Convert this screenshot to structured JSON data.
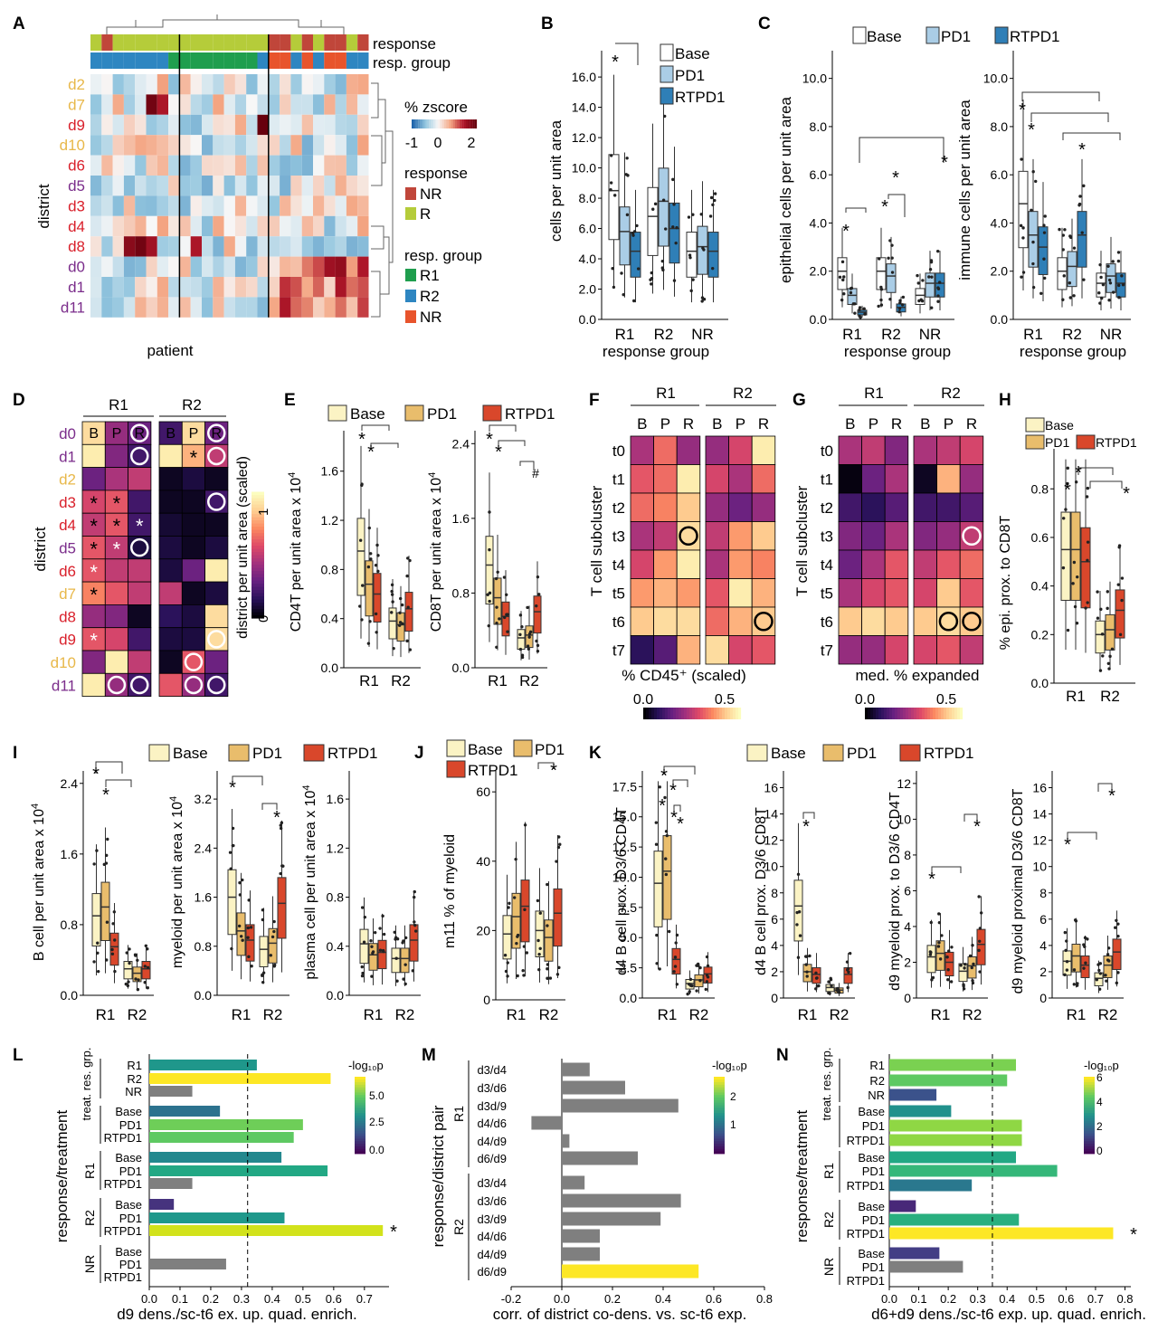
{
  "panel_letters": {
    "A": "A",
    "B": "B",
    "C": "C",
    "D": "D",
    "E": "E",
    "F": "F",
    "G": "G",
    "H": "H",
    "I": "I",
    "J": "J",
    "K": "K",
    "L": "L",
    "M": "M",
    "N": "N"
  },
  "colors": {
    "base": "#fbf3c4",
    "pd1": "#e9bd6c",
    "rtpd1": "#d9472b",
    "b_base": "#ffffff",
    "b_pd1": "#aacde6",
    "b_rtpd1": "#2f7fb7",
    "R": "#b5cc3a",
    "NR": "#c0463a",
    "R1": "#1f9e4e",
    "R2": "#2e86c1",
    "NRg": "#e8542c",
    "grey": "#7f7f7f",
    "R1_text": "#d9202b",
    "R2_text": "#7b2d8b",
    "NR_text": "#e8b84a"
  },
  "legend": {
    "base": "Base",
    "pd1": "PD1",
    "rtpd1": "RTPD1"
  },
  "stars": {
    "s": "*",
    "hash": "#"
  },
  "A": {
    "rows": [
      "d2",
      "d7",
      "d9",
      "d10",
      "d6",
      "d5",
      "d3",
      "d4",
      "d8",
      "d0",
      "d1",
      "d11"
    ],
    "row_colors": [
      "#e8b84a",
      "#e8b84a",
      "#d9202b",
      "#e8b84a",
      "#d9202b",
      "#7b2d8b",
      "#d9202b",
      "#d9202b",
      "#d9202b",
      "#7b2d8b",
      "#7b2d8b",
      "#7b2d8b"
    ],
    "response_label": "response",
    "group_label": "resp. group",
    "ylabel": "district",
    "xlabel": "patient",
    "zscore_label": "% zscore",
    "zticks": [
      "-1",
      "0",
      "2"
    ],
    "legend_response_title": "response",
    "legend_response": [
      "NR",
      "R"
    ],
    "legend_group_title": "resp. group",
    "legend_group": [
      "R1",
      "R2",
      "NR"
    ]
  },
  "B": {
    "ylabel": "cells per unit area",
    "xlabel": "response group",
    "yticks": [
      "0.0",
      "2.0",
      "4.0",
      "6.0",
      "8.0",
      "10.0",
      "12.0",
      "14.0",
      "16.0"
    ],
    "groups": [
      "R1",
      "R2",
      "NR"
    ],
    "chart_data": {
      "type": "box",
      "title": "",
      "ylim": [
        0,
        17.5
      ],
      "series": [
        {
          "name": "Base",
          "values": [
            8.5,
            6.8,
            4.5
          ]
        },
        {
          "name": "PD1",
          "values": [
            5.8,
            7.8,
            4.8
          ]
        },
        {
          "name": "RTPD1",
          "values": [
            4.5,
            6.0,
            4.5
          ]
        }
      ]
    }
  },
  "C1": {
    "ylabel": "epithelial cells per unit area",
    "xlabel": "response group",
    "yticks": [
      "0.0",
      "2.0",
      "4.0",
      "6.0",
      "8.0",
      "10.0"
    ],
    "groups": [
      "R1",
      "R2",
      "NR"
    ],
    "chart_data": {
      "type": "box",
      "title": "",
      "ylim": [
        0,
        11
      ],
      "series": [
        {
          "name": "Base",
          "values": [
            2.0,
            2.0,
            1.0
          ]
        },
        {
          "name": "PD1",
          "values": [
            1.0,
            1.8,
            1.5
          ]
        },
        {
          "name": "RTPD1",
          "values": [
            0.3,
            0.5,
            1.5
          ]
        }
      ]
    }
  },
  "C2": {
    "ylabel": "immune cells per unit area",
    "xlabel": "response group",
    "yticks": [
      "0.0",
      "2.0",
      "4.0",
      "6.0",
      "8.0",
      "10.0"
    ],
    "groups": [
      "R1",
      "R2",
      "NR"
    ],
    "chart_data": {
      "type": "box",
      "title": "",
      "ylim": [
        0,
        11
      ],
      "series": [
        {
          "name": "Base",
          "values": [
            4.8,
            2.0,
            1.5
          ]
        },
        {
          "name": "PD1",
          "values": [
            3.5,
            2.2,
            1.8
          ]
        },
        {
          "name": "RTPD1",
          "values": [
            3.0,
            3.5,
            1.5
          ]
        }
      ]
    }
  },
  "D": {
    "ylabel": "district",
    "g1": "R1",
    "g2": "R2",
    "cols": [
      "B",
      "P",
      "R"
    ],
    "rows": [
      "d0",
      "d1",
      "d2",
      "d3",
      "d4",
      "d5",
      "d6",
      "d7",
      "d8",
      "d9",
      "d10",
      "d11"
    ],
    "cbar_label": "district per unit area (scaled)",
    "cbar_ticks": [
      "0",
      "1"
    ]
  },
  "E": {
    "ylabel1": "CD4T per unit area x 10",
    "ylabel2": "CD8T per unit area x 10",
    "exp": "4",
    "groups": [
      "R1",
      "R2"
    ],
    "yticks1": [
      "0.0",
      "0.4",
      "0.8",
      "1.2",
      "1.6"
    ],
    "yticks2": [
      "0.0",
      "0.8",
      "1.6",
      "2.4"
    ],
    "chart_data": [
      {
        "type": "box",
        "title": "",
        "ylim": [
          0,
          1.9
        ],
        "series": [
          {
            "name": "Base",
            "values": [
              0.95,
              0.38
            ]
          },
          {
            "name": "PD1",
            "values": [
              0.68,
              0.35
            ]
          },
          {
            "name": "RTPD1",
            "values": [
              0.6,
              0.48
            ]
          }
        ]
      },
      {
        "type": "box",
        "title": "",
        "ylim": [
          0,
          2.5
        ],
        "series": [
          {
            "name": "Base",
            "values": [
              1.1,
              0.32
            ]
          },
          {
            "name": "PD1",
            "values": [
              0.75,
              0.35
            ]
          },
          {
            "name": "RTPD1",
            "values": [
              0.55,
              0.6
            ]
          }
        ]
      }
    ]
  },
  "F": {
    "ylabel": "T cell subcluster",
    "g1": "R1",
    "g2": "R2",
    "cols": [
      "B",
      "P",
      "R"
    ],
    "rows": [
      "t0",
      "t1",
      "t2",
      "t3",
      "t4",
      "t5",
      "t6",
      "t7"
    ],
    "xlabel": "% CD45⁺ (scaled)",
    "cbar_ticks": [
      "0.0",
      "0.5"
    ]
  },
  "G": {
    "ylabel": "T cell subcluster",
    "g1": "R1",
    "g2": "R2",
    "cols": [
      "B",
      "P",
      "R"
    ],
    "rows": [
      "t0",
      "t1",
      "t2",
      "t3",
      "t4",
      "t5",
      "t6",
      "t7"
    ],
    "xlabel": "med. % expanded",
    "cbar_ticks": [
      "0.0",
      "0.5"
    ]
  },
  "H": {
    "ylabel": "% epi. prox. to CD8T",
    "yticks": [
      "0.0",
      "0.2",
      "0.4",
      "0.6",
      "0.8"
    ],
    "groups": [
      "R1",
      "R2"
    ],
    "chart_data": {
      "type": "box",
      "title": "",
      "ylim": [
        0,
        0.95
      ],
      "series": [
        {
          "name": "Base",
          "values": [
            0.55,
            0.2
          ]
        },
        {
          "name": "PD1",
          "values": [
            0.55,
            0.22
          ]
        },
        {
          "name": "RTPD1",
          "values": [
            0.5,
            0.3
          ]
        }
      ]
    }
  },
  "I": {
    "ylabel1": "B cell per unit area x 10",
    "ylabel2": "myeloid per unit area x 10",
    "ylabel3": "plasma cell per unit area x 10",
    "exp": "4",
    "groups": [
      "R1",
      "R2"
    ],
    "yticks1": [
      "0.0",
      "0.8",
      "1.6",
      "2.4"
    ],
    "yticks2": [
      "0.0",
      "0.8",
      "1.6",
      "2.4",
      "3.2"
    ],
    "yticks3": [
      "0.0",
      "0.4",
      "0.8",
      "1.2",
      "1.6"
    ],
    "chart_data": [
      {
        "type": "box",
        "title": "",
        "ylim": [
          0,
          2.5
        ],
        "series": [
          {
            "name": "Base",
            "values": [
              0.9,
              0.3
            ]
          },
          {
            "name": "PD1",
            "values": [
              1.0,
              0.25
            ]
          },
          {
            "name": "RTPD1",
            "values": [
              0.55,
              0.3
            ]
          }
        ]
      },
      {
        "type": "box",
        "title": "",
        "ylim": [
          0,
          3.6
        ],
        "series": [
          {
            "name": "Base",
            "values": [
              1.6,
              0.75
            ]
          },
          {
            "name": "PD1",
            "values": [
              1.05,
              0.85
            ]
          },
          {
            "name": "RTPD1",
            "values": [
              0.9,
              1.5
            ]
          }
        ]
      },
      {
        "type": "box",
        "title": "",
        "ylim": [
          0,
          1.8
        ],
        "series": [
          {
            "name": "Base",
            "values": [
              0.42,
              0.3
            ]
          },
          {
            "name": "PD1",
            "values": [
              0.33,
              0.3
            ]
          },
          {
            "name": "RTPD1",
            "values": [
              0.35,
              0.45
            ]
          }
        ]
      }
    ]
  },
  "J": {
    "ylabel": "m11 % of myeloid",
    "yticks": [
      "0",
      "20",
      "40",
      "60"
    ],
    "groups": [
      "R1",
      "R2"
    ],
    "chart_data": {
      "type": "box",
      "title": "",
      "ylim": [
        0,
        65
      ],
      "series": [
        {
          "name": "Base",
          "values": [
            19,
            20
          ]
        },
        {
          "name": "PD1",
          "values": [
            24,
            18
          ]
        },
        {
          "name": "RTPD1",
          "values": [
            27,
            25
          ]
        }
      ]
    }
  },
  "K": {
    "ylabel1": "d4 B cell prox. D3/6 CD4T",
    "ylabel2": "d4 B cell prox. D3/6 CD8T",
    "ylabel3": "d9 myeloid prox. to D3/6 CD4T",
    "ylabel4": "d9 myeloid proximal D3/6 CD8T",
    "groups": [
      "R1",
      "R2"
    ],
    "yticks1": [
      "0.0",
      "2.5",
      "5.0",
      "7.5",
      "10.0",
      "12.5",
      "15.0",
      "17.5"
    ],
    "yticks2": [
      "0",
      "2",
      "4",
      "6",
      "8",
      "10",
      "12",
      "14",
      "16"
    ],
    "yticks3": [
      "0",
      "2",
      "4",
      "6",
      "8",
      "10",
      "12"
    ],
    "yticks4": [
      "0",
      "2",
      "4",
      "6",
      "8",
      "10",
      "12",
      "14",
      "16"
    ],
    "chart_data": [
      {
        "type": "box",
        "title": "",
        "ylim": [
          0,
          18.5
        ],
        "series": [
          {
            "name": "Base",
            "values": [
              9.5,
              1.2
            ]
          },
          {
            "name": "PD1",
            "values": [
              10.5,
              1.5
            ]
          },
          {
            "name": "RTPD1",
            "values": [
              3.2,
              2.0
            ]
          }
        ]
      },
      {
        "type": "box",
        "title": "",
        "ylim": [
          0,
          17
        ],
        "series": [
          {
            "name": "Base",
            "values": [
              7.0,
              0.8
            ]
          },
          {
            "name": "PD1",
            "values": [
              2.0,
              0.6
            ]
          },
          {
            "name": "RTPD1",
            "values": [
              1.8,
              1.8
            ]
          }
        ]
      },
      {
        "type": "box",
        "title": "",
        "ylim": [
          0,
          12.5
        ],
        "series": [
          {
            "name": "Base",
            "values": [
              2.3,
              1.5
            ]
          },
          {
            "name": "PD1",
            "values": [
              2.5,
              1.8
            ]
          },
          {
            "name": "RTPD1",
            "values": [
              2.0,
              3.0
            ]
          }
        ]
      },
      {
        "type": "box",
        "title": "",
        "ylim": [
          0,
          17
        ],
        "series": [
          {
            "name": "Base",
            "values": [
              2.8,
              1.5
            ]
          },
          {
            "name": "PD1",
            "values": [
              3.2,
              2.5
            ]
          },
          {
            "name": "RTPD1",
            "values": [
              2.5,
              3.5
            ]
          }
        ]
      }
    ]
  },
  "L": {
    "ylabel": "response/treatment",
    "xlabel": "d9 dens./sc-t6 ex. up. quad. enrich.",
    "sublabel": "treat. res. grp.",
    "cbar_title": "-log₁₀p",
    "cbar_ticks": [
      "0.0",
      "2.5",
      "5.0"
    ],
    "xticks": [
      "0.0",
      "0.1",
      "0.2",
      "0.3",
      "0.4",
      "0.5",
      "0.6",
      "0.7"
    ],
    "chart_data": {
      "type": "bar",
      "title": "",
      "xlim": [
        0,
        0.78
      ],
      "categories": [
        "R1",
        "R2",
        "NR",
        "Base",
        "PD1",
        "RTPD1",
        "Base",
        "PD1",
        "RTPD1",
        "Base",
        "PD1",
        "RTPD1",
        "Base",
        "PD1",
        "RTPD1"
      ],
      "groups": [
        "",
        "",
        "",
        "",
        "",
        "",
        "R1",
        "R1",
        "R1",
        "R2",
        "R2",
        "R2",
        "NR",
        "NR",
        "NR"
      ],
      "values": [
        0.35,
        0.59,
        0.14,
        0.23,
        0.5,
        0.47,
        0.43,
        0.58,
        0.14,
        0.08,
        0.44,
        0.76,
        0,
        0.25,
        0
      ],
      "colors": [
        "#1f978b",
        "#fde725",
        "#7f7f7f",
        "#2c728e",
        "#6ece58",
        "#5ec962",
        "#23888e",
        "#22a884",
        "#7f7f7f",
        "#46337e",
        "#1f988b",
        "#d2e21b",
        "#7f7f7f",
        "#7f7f7f",
        "#7f7f7f"
      ],
      "dashed_x": 0.32
    }
  },
  "M": {
    "ylabel": "response/district pair",
    "xlabel": "corr. of district co-dens. vs. sc-t6 exp.",
    "cbar_title": "-log₁₀p",
    "cbar_ticks": [
      "1",
      "2"
    ],
    "xticks": [
      "-0.2",
      "0.0",
      "0.2",
      "0.4",
      "0.6",
      "0.8"
    ],
    "g1": "R1",
    "g2": "R2",
    "chart_data": {
      "type": "bar",
      "title": "",
      "xlim": [
        -0.2,
        0.8
      ],
      "categories": [
        "d3/d4",
        "d3/d6",
        "d3d/9",
        "d4/d6",
        "d4/d9",
        "d6/d9",
        "d3/d4",
        "d3/d6",
        "d3/d9",
        "d4/d6",
        "d4/d9",
        "d6/d9"
      ],
      "values": [
        0.11,
        0.25,
        0.46,
        -0.12,
        0.03,
        0.3,
        0.09,
        0.47,
        0.39,
        0.15,
        0.15,
        0.54
      ],
      "colors": [
        "#7f7f7f",
        "#7f7f7f",
        "#7f7f7f",
        "#7f7f7f",
        "#7f7f7f",
        "#7f7f7f",
        "#7f7f7f",
        "#7f7f7f",
        "#7f7f7f",
        "#7f7f7f",
        "#7f7f7f",
        "#fde725"
      ]
    }
  },
  "N": {
    "ylabel": "response/treatment",
    "xlabel": "d6+d9 dens./sc-t6 exp. up. quad. enrich.",
    "sublabel": "treat. res. grp.",
    "cbar_title": "-log₁₀p",
    "cbar_ticks": [
      "0",
      "2",
      "4",
      "6"
    ],
    "xticks": [
      "0.0",
      "0.1",
      "0.2",
      "0.3",
      "0.4",
      "0.5",
      "0.6",
      "0.7",
      "0.8"
    ],
    "chart_data": {
      "type": "bar",
      "title": "",
      "xlim": [
        0,
        0.82
      ],
      "categories": [
        "R1",
        "R2",
        "NR",
        "Base",
        "PD1",
        "RTPD1",
        "Base",
        "PD1",
        "RTPD1",
        "Base",
        "PD1",
        "RTPD1",
        "Base",
        "PD1",
        "RTPD1"
      ],
      "groups": [
        "",
        "",
        "",
        "",
        "",
        "",
        "R1",
        "R1",
        "R1",
        "R2",
        "R2",
        "R2",
        "NR",
        "NR",
        "NR"
      ],
      "values": [
        0.43,
        0.4,
        0.16,
        0.21,
        0.45,
        0.45,
        0.43,
        0.57,
        0.28,
        0.09,
        0.44,
        0.76,
        0.17,
        0.25,
        0
      ],
      "colors": [
        "#7ad151",
        "#5ec962",
        "#3b528b",
        "#21918c",
        "#8fd744",
        "#8fd744",
        "#22a884",
        "#35b779",
        "#2a788e",
        "#482878",
        "#29af7f",
        "#fde725",
        "#433e85",
        "#7f7f7f",
        "#7f7f7f"
      ],
      "dashed_x": 0.35
    }
  }
}
